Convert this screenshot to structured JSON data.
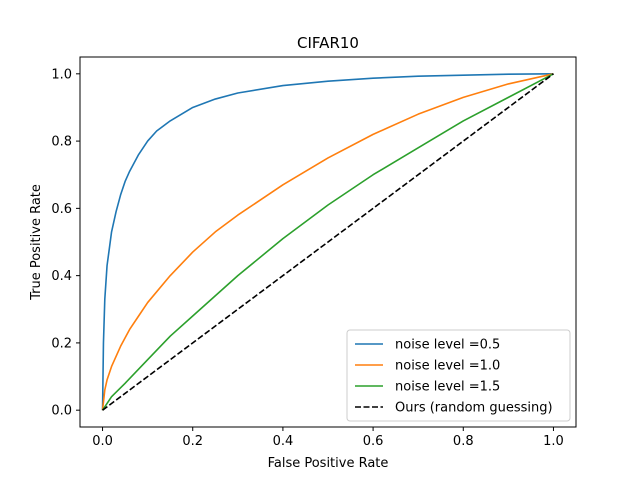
{
  "chart_data": {
    "type": "line",
    "title": "CIFAR10",
    "xlabel": "False Positive Rate",
    "ylabel": "True Positive Rate",
    "xlim": [
      -0.05,
      1.05
    ],
    "ylim": [
      -0.05,
      1.05
    ],
    "xticks": [
      0.0,
      0.2,
      0.4,
      0.6,
      0.8,
      1.0
    ],
    "yticks": [
      0.0,
      0.2,
      0.4,
      0.6,
      0.8,
      1.0
    ],
    "xtick_labels": [
      "0.0",
      "0.2",
      "0.4",
      "0.6",
      "0.8",
      "1.0"
    ],
    "ytick_labels": [
      "0.0",
      "0.2",
      "0.4",
      "0.6",
      "0.8",
      "1.0"
    ],
    "grid": false,
    "legend_position": "lower-right",
    "series": [
      {
        "name": "noise level =0.5",
        "color": "#1f77b4",
        "style": "solid",
        "x": [
          0.0,
          0.002,
          0.005,
          0.01,
          0.015,
          0.02,
          0.03,
          0.04,
          0.05,
          0.06,
          0.08,
          0.1,
          0.12,
          0.15,
          0.2,
          0.25,
          0.3,
          0.4,
          0.5,
          0.6,
          0.7,
          0.8,
          0.9,
          1.0
        ],
        "y": [
          0.0,
          0.2,
          0.33,
          0.43,
          0.48,
          0.53,
          0.59,
          0.64,
          0.68,
          0.71,
          0.76,
          0.8,
          0.83,
          0.86,
          0.9,
          0.925,
          0.943,
          0.965,
          0.978,
          0.987,
          0.993,
          0.996,
          0.999,
          1.0
        ]
      },
      {
        "name": "noise level =1.0",
        "color": "#ff7f0e",
        "style": "solid",
        "x": [
          0.0,
          0.005,
          0.01,
          0.02,
          0.04,
          0.06,
          0.08,
          0.1,
          0.15,
          0.2,
          0.25,
          0.3,
          0.4,
          0.5,
          0.6,
          0.7,
          0.8,
          0.9,
          1.0
        ],
        "y": [
          0.0,
          0.06,
          0.09,
          0.13,
          0.19,
          0.24,
          0.28,
          0.32,
          0.4,
          0.47,
          0.53,
          0.58,
          0.67,
          0.75,
          0.82,
          0.88,
          0.93,
          0.97,
          1.0
        ]
      },
      {
        "name": "noise level =1.5",
        "color": "#2ca02c",
        "style": "solid",
        "x": [
          0.0,
          0.01,
          0.02,
          0.05,
          0.1,
          0.15,
          0.2,
          0.3,
          0.4,
          0.5,
          0.6,
          0.7,
          0.8,
          0.9,
          1.0
        ],
        "y": [
          0.0,
          0.02,
          0.04,
          0.08,
          0.15,
          0.22,
          0.28,
          0.4,
          0.51,
          0.61,
          0.7,
          0.78,
          0.86,
          0.93,
          1.0
        ]
      },
      {
        "name": "Ours (random guessing)",
        "color": "#000000",
        "style": "dashed",
        "x": [
          0.0,
          1.0
        ],
        "y": [
          0.0,
          1.0
        ]
      }
    ]
  }
}
